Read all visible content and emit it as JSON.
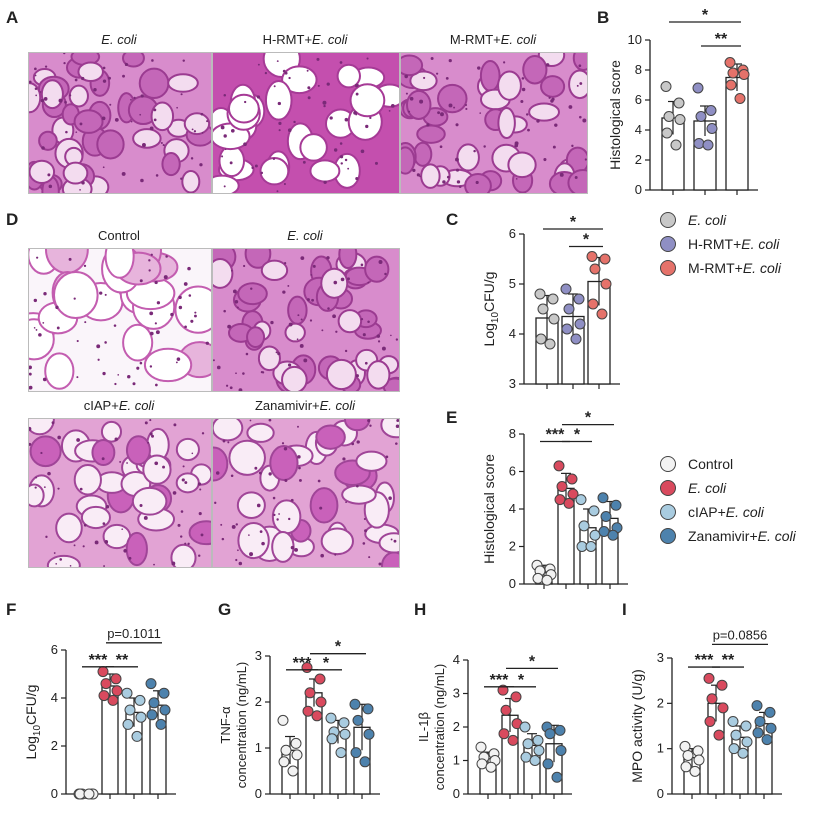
{
  "panels": {
    "A": {
      "letter": "A",
      "images": [
        {
          "label": "E. coli",
          "italic": true,
          "style": "dense"
        },
        {
          "label": "H-RMT+",
          "label_italic": "E. coli",
          "style": "sparse"
        },
        {
          "label": "M-RMT+",
          "label_italic": "E. coli",
          "style": "dense"
        }
      ]
    },
    "D": {
      "letter": "D",
      "images": [
        {
          "label": "Control",
          "italic": false,
          "style": "control"
        },
        {
          "label": "E. coli",
          "italic": true,
          "style": "dense"
        },
        {
          "label": "cIAP+",
          "label_italic": "E. coli",
          "style": "patchy"
        },
        {
          "label": "Zanamivir+",
          "label_italic": "E. coli",
          "style": "patchy"
        }
      ]
    },
    "B": {
      "letter": "B"
    },
    "C": {
      "letter": "C"
    },
    "E": {
      "letter": "E"
    },
    "F": {
      "letter": "F"
    },
    "G": {
      "letter": "G"
    },
    "H": {
      "letter": "H"
    },
    "I": {
      "letter": "I"
    }
  },
  "legends": {
    "group1": [
      {
        "prefix": "",
        "italic": "E. coli",
        "color": "#c8c8c8"
      },
      {
        "prefix": "H-RMT+",
        "italic": "E. coli",
        "color": "#8f8fc4"
      },
      {
        "prefix": "M-RMT+",
        "italic": "E. coli",
        "color": "#e5726a"
      }
    ],
    "group2": [
      {
        "prefix": "Control",
        "italic": "",
        "color": "#f2f2f2"
      },
      {
        "prefix": "",
        "italic": "E. coli",
        "color": "#d94a5e"
      },
      {
        "prefix": "cIAP+",
        "italic": "E. coli",
        "color": "#a9cce0"
      },
      {
        "prefix": "Zanamivir+",
        "italic": "E. coli",
        "color": "#4d82ad"
      }
    ]
  },
  "chart_data": [
    {
      "panel": "B",
      "type": "bar",
      "ylabel": "Histological score",
      "ylim": [
        0,
        10
      ],
      "yticks": [
        0,
        2,
        4,
        6,
        8,
        10
      ],
      "groups": [
        {
          "color": "#c8c8c8",
          "mean": 4.8,
          "sd": 1.1,
          "points": [
            6.9,
            5.8,
            4.9,
            4.7,
            3.8,
            3.0
          ]
        },
        {
          "color": "#8f8fc4",
          "mean": 4.6,
          "sd": 1.0,
          "points": [
            6.8,
            5.3,
            4.9,
            4.1,
            3.1,
            3.0
          ]
        },
        {
          "color": "#e5726a",
          "mean": 7.5,
          "sd": 0.9,
          "points": [
            8.5,
            8.0,
            7.8,
            7.7,
            7.0,
            6.1
          ]
        }
      ],
      "sig": [
        {
          "from": 0,
          "to": 2,
          "label": "*",
          "level": 11.2
        },
        {
          "from": 1,
          "to": 2,
          "label": "**",
          "level": 9.6
        }
      ]
    },
    {
      "panel": "C",
      "type": "bar",
      "ylabel": "Log10CFU/g",
      "ylim": [
        3,
        6
      ],
      "yticks": [
        3,
        4,
        5,
        6
      ],
      "groups": [
        {
          "color": "#c8c8c8",
          "mean": 4.32,
          "sd": 0.45,
          "points": [
            4.8,
            4.7,
            4.5,
            4.3,
            3.9,
            3.8
          ]
        },
        {
          "color": "#8f8fc4",
          "mean": 4.35,
          "sd": 0.45,
          "points": [
            4.9,
            4.7,
            4.5,
            4.2,
            4.1,
            3.9
          ]
        },
        {
          "color": "#e5726a",
          "mean": 5.05,
          "sd": 0.48,
          "points": [
            5.55,
            5.5,
            5.3,
            5.0,
            4.6,
            4.4
          ]
        }
      ],
      "sig": [
        {
          "from": 0,
          "to": 2,
          "label": "*",
          "level": 6.1
        },
        {
          "from": 1,
          "to": 2,
          "label": "*",
          "level": 5.75
        }
      ]
    },
    {
      "panel": "E",
      "type": "bar",
      "ylabel": "Histological score",
      "ylim": [
        0,
        8
      ],
      "yticks": [
        0,
        2,
        4,
        6,
        8
      ],
      "groups": [
        {
          "color": "#f2f2f2",
          "mean": 0.6,
          "sd": 0.4,
          "points": [
            1.0,
            0.8,
            0.7,
            0.5,
            0.3,
            0.2
          ]
        },
        {
          "color": "#d94a5e",
          "mean": 5.1,
          "sd": 0.8,
          "points": [
            6.3,
            5.6,
            5.2,
            4.8,
            4.5,
            4.3
          ]
        },
        {
          "color": "#a9cce0",
          "mean": 3.0,
          "sd": 1.0,
          "points": [
            4.5,
            3.9,
            3.1,
            2.6,
            2.0,
            2.0
          ]
        },
        {
          "color": "#4d82ad",
          "mean": 3.5,
          "sd": 0.9,
          "points": [
            4.6,
            4.2,
            3.6,
            3.0,
            2.8,
            2.6
          ]
        }
      ],
      "sig": [
        {
          "from": 0,
          "to": 1,
          "label": "***",
          "level": 7.6
        },
        {
          "from": 1,
          "to": 2,
          "label": "*",
          "level": 7.6
        },
        {
          "from": 1,
          "to": 3,
          "label": "*",
          "level": 8.5
        }
      ]
    },
    {
      "panel": "F",
      "type": "bar",
      "ylabel": "Log10CFU/g",
      "ylim": [
        0,
        6
      ],
      "yticks": [
        0,
        2,
        4,
        6
      ],
      "groups": [
        {
          "color": "#f2f2f2",
          "mean": 0.0,
          "sd": 0.0,
          "points": [
            0,
            0,
            0,
            0,
            0,
            0
          ]
        },
        {
          "color": "#d94a5e",
          "mean": 4.5,
          "sd": 0.5,
          "points": [
            5.1,
            4.8,
            4.6,
            4.3,
            4.1,
            3.9
          ]
        },
        {
          "color": "#a9cce0",
          "mean": 3.4,
          "sd": 0.6,
          "points": [
            4.2,
            3.9,
            3.5,
            3.2,
            2.9,
            2.4
          ]
        },
        {
          "color": "#4d82ad",
          "mean": 3.7,
          "sd": 0.6,
          "points": [
            4.6,
            4.2,
            3.8,
            3.5,
            3.3,
            2.9
          ]
        }
      ],
      "sig": [
        {
          "from": 0,
          "to": 1,
          "label": "***",
          "level": 5.3
        },
        {
          "from": 1,
          "to": 2,
          "label": "**",
          "level": 5.3
        },
        {
          "from": 1,
          "to": 3,
          "label": "p=0.1011",
          "level": 6.3
        }
      ]
    },
    {
      "panel": "G",
      "type": "bar",
      "ylabel": "TNF-α concentration (ng/mL)",
      "ylim": [
        0,
        3
      ],
      "yticks": [
        0,
        1,
        2,
        3
      ],
      "groups": [
        {
          "color": "#f2f2f2",
          "mean": 0.95,
          "sd": 0.3,
          "points": [
            1.6,
            1.1,
            0.95,
            0.85,
            0.7,
            0.5
          ]
        },
        {
          "color": "#d94a5e",
          "mean": 2.2,
          "sd": 0.3,
          "points": [
            2.75,
            2.5,
            2.2,
            2.0,
            1.8,
            1.7
          ]
        },
        {
          "color": "#a9cce0",
          "mean": 1.35,
          "sd": 0.25,
          "points": [
            1.65,
            1.55,
            1.35,
            1.3,
            1.2,
            0.9
          ]
        },
        {
          "color": "#4d82ad",
          "mean": 1.45,
          "sd": 0.5,
          "points": [
            1.95,
            1.85,
            1.6,
            1.3,
            0.9,
            0.7
          ]
        }
      ],
      "sig": [
        {
          "from": 0,
          "to": 1,
          "label": "***",
          "level": 2.7
        },
        {
          "from": 1,
          "to": 2,
          "label": "*",
          "level": 2.7
        },
        {
          "from": 1,
          "to": 3,
          "label": "*",
          "level": 3.05
        }
      ]
    },
    {
      "panel": "H",
      "type": "bar",
      "ylabel": "IL-1β concentration (ng/mL)",
      "ylim": [
        0,
        4
      ],
      "yticks": [
        0,
        1,
        2,
        3,
        4
      ],
      "groups": [
        {
          "color": "#f2f2f2",
          "mean": 1.05,
          "sd": 0.2,
          "points": [
            1.4,
            1.2,
            1.1,
            1.0,
            0.9,
            0.8
          ]
        },
        {
          "color": "#d94a5e",
          "mean": 2.35,
          "sd": 0.5,
          "points": [
            3.1,
            2.9,
            2.5,
            2.1,
            1.8,
            1.6
          ]
        },
        {
          "color": "#a9cce0",
          "mean": 1.45,
          "sd": 0.35,
          "points": [
            2.0,
            1.6,
            1.5,
            1.3,
            1.1,
            1.0
          ]
        },
        {
          "color": "#4d82ad",
          "mean": 1.5,
          "sd": 0.55,
          "points": [
            2.0,
            1.9,
            1.8,
            1.3,
            0.9,
            0.5
          ]
        }
      ],
      "sig": [
        {
          "from": 0,
          "to": 1,
          "label": "***",
          "level": 3.2
        },
        {
          "from": 1,
          "to": 2,
          "label": "*",
          "level": 3.2
        },
        {
          "from": 1,
          "to": 3,
          "label": "*",
          "level": 3.75
        }
      ]
    },
    {
      "panel": "I",
      "type": "bar",
      "ylabel": "MPO activity (U/g)",
      "ylim": [
        0,
        3
      ],
      "yticks": [
        0,
        1,
        2,
        3
      ],
      "groups": [
        {
          "color": "#f2f2f2",
          "mean": 0.8,
          "sd": 0.2,
          "points": [
            1.05,
            0.95,
            0.85,
            0.75,
            0.6,
            0.5
          ]
        },
        {
          "color": "#d94a5e",
          "mean": 2.0,
          "sd": 0.4,
          "points": [
            2.55,
            2.4,
            2.1,
            1.9,
            1.6,
            1.3
          ]
        },
        {
          "color": "#a9cce0",
          "mean": 1.25,
          "sd": 0.25,
          "points": [
            1.6,
            1.5,
            1.3,
            1.15,
            1.0,
            0.9
          ]
        },
        {
          "color": "#4d82ad",
          "mean": 1.55,
          "sd": 0.25,
          "points": [
            1.95,
            1.8,
            1.6,
            1.45,
            1.35,
            1.2
          ]
        }
      ],
      "sig": [
        {
          "from": 0,
          "to": 1,
          "label": "***",
          "level": 2.8
        },
        {
          "from": 1,
          "to": 2,
          "label": "**",
          "level": 2.8
        },
        {
          "from": 1,
          "to": 3,
          "label": "p=0.0856",
          "level": 3.3
        }
      ]
    }
  ]
}
